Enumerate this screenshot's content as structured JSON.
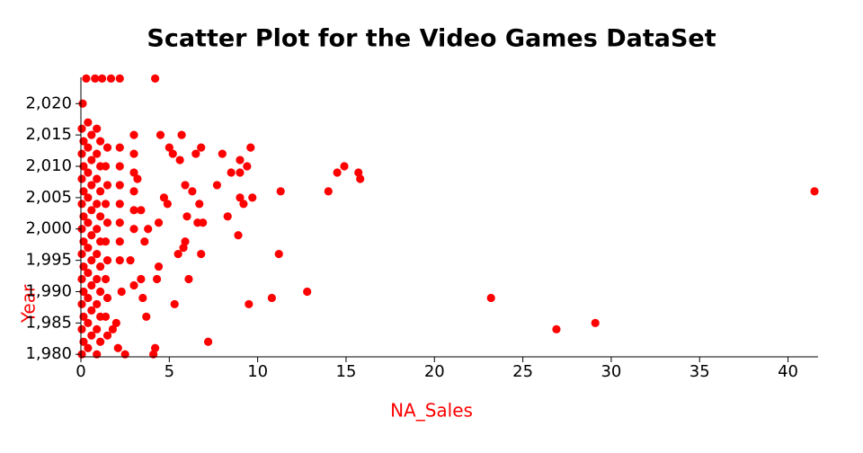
{
  "chart_data": {
    "type": "scatter",
    "title": "Scatter Plot for the Video Games DataSet",
    "x_label": "NA_Sales",
    "y_label": "Year",
    "color": "#ff0000",
    "xlim": [
      0,
      41.7
    ],
    "ylim": [
      1979.6,
      2024.2
    ],
    "xticks": [
      0,
      5,
      10,
      15,
      20,
      25,
      30,
      35,
      40
    ],
    "yticks": [
      {
        "value": 1980,
        "label": "1,980"
      },
      {
        "value": 1985,
        "label": "1,985"
      },
      {
        "value": 1990,
        "label": "1,990"
      },
      {
        "value": 1995,
        "label": "1,995"
      },
      {
        "value": 2000,
        "label": "2,000"
      },
      {
        "value": 2005,
        "label": "2,005"
      },
      {
        "value": 2010,
        "label": "2,010"
      },
      {
        "value": 2015,
        "label": "2,015"
      },
      {
        "value": 2020,
        "label": "2,020"
      }
    ],
    "x": [
      41.5,
      29.1,
      26.9,
      23.2,
      15.8,
      15.7,
      14.9,
      14.5,
      14,
      12.8,
      11.3,
      11.2,
      10.8,
      9.7,
      9.6,
      9.5,
      9.4,
      9.2,
      9,
      8.9,
      9,
      9,
      8.5,
      8.3,
      8,
      7.7,
      7.2,
      6.9,
      6.8,
      6.8,
      6.7,
      6.6,
      6.5,
      6.3,
      6.1,
      6,
      5.9,
      5.8,
      5.9,
      5.7,
      5.5,
      5.3,
      5.6,
      5.2,
      5,
      4.9,
      4.7,
      4.5,
      4.4,
      4.4,
      4.3,
      4.2,
      4.1,
      3.7,
      3.5,
      3.4,
      3.8,
      3.6,
      3.4,
      3.2,
      3,
      2.8,
      2.5,
      2.1,
      2,
      2.3,
      1.8,
      0.3,
      0.8,
      1.2,
      1.7,
      2.2,
      4.2,
      0.1,
      0.05,
      0.15,
      0.05,
      0.15,
      0.05,
      0.15,
      0.05,
      0.15,
      0.05,
      0.15,
      0.05,
      0.15,
      0.05,
      0.15,
      0.05,
      0.15,
      0.05,
      0.15,
      0.05,
      0.4,
      0.6,
      0.4,
      0.6,
      0.4,
      0.6,
      0.4,
      0.6,
      0.4,
      0.6,
      0.4,
      0.6,
      0.4,
      0.6,
      0.4,
      0.6,
      0.4,
      0.6,
      0.4,
      0.9,
      1.1,
      0.9,
      1.1,
      0.9,
      1.1,
      0.9,
      1.1,
      0.9,
      1.1,
      0.9,
      1.1,
      0.9,
      1.1,
      0.9,
      1.1,
      0.9,
      1.1,
      0.9,
      1.5,
      1.4,
      1.5,
      1.4,
      1.5,
      1.4,
      1.5,
      1.4,
      1.5,
      1.4,
      1.5,
      2.2,
      2.2,
      2.2,
      2.2,
      2.2,
      2.2,
      2.2,
      3,
      3,
      3,
      3,
      3,
      3
    ],
    "values": [
      2006,
      1985,
      1984,
      1989,
      2008,
      2009,
      2010,
      2009,
      2006,
      1990,
      2006,
      1996,
      1989,
      2005,
      2013,
      1988,
      2010,
      2004,
      2009,
      1999,
      2011,
      2005,
      2009,
      2002,
      2012,
      2007,
      1982,
      2001,
      1996,
      2013,
      2004,
      2001,
      2012,
      2006,
      1992,
      2002,
      1998,
      1997,
      2007,
      2015,
      1996,
      1988,
      2011,
      2012,
      2013,
      2004,
      2005,
      2015,
      1994,
      2001,
      1992,
      1981,
      1980,
      1986,
      1989,
      1992,
      2000,
      1998,
      2003,
      2008,
      1991,
      1995,
      1980,
      1981,
      1985,
      1990,
      1984,
      2024,
      2024,
      2024,
      2024,
      2024,
      2024,
      2020,
      1980,
      1982,
      1984,
      1986,
      1988,
      1990,
      1992,
      1994,
      1996,
      1998,
      2000,
      2002,
      2004,
      2006,
      2008,
      2010,
      2012,
      2014,
      2016,
      1981,
      1983,
      1985,
      1987,
      1989,
      1991,
      1993,
      1995,
      1997,
      1999,
      2001,
      2003,
      2005,
      2007,
      2009,
      2011,
      2013,
      2015,
      2017,
      1980,
      1982,
      1984,
      1986,
      1988,
      1990,
      1992,
      1994,
      1996,
      1998,
      2000,
      2002,
      2004,
      2006,
      2008,
      2010,
      2012,
      2014,
      2016,
      1983,
      1986,
      1989,
      1992,
      1995,
      1998,
      2001,
      2004,
      2007,
      2010,
      2013,
      1995,
      1998,
      2001,
      2004,
      2007,
      2010,
      2013,
      2000,
      2003,
      2006,
      2009,
      2012,
      2015
    ]
  }
}
